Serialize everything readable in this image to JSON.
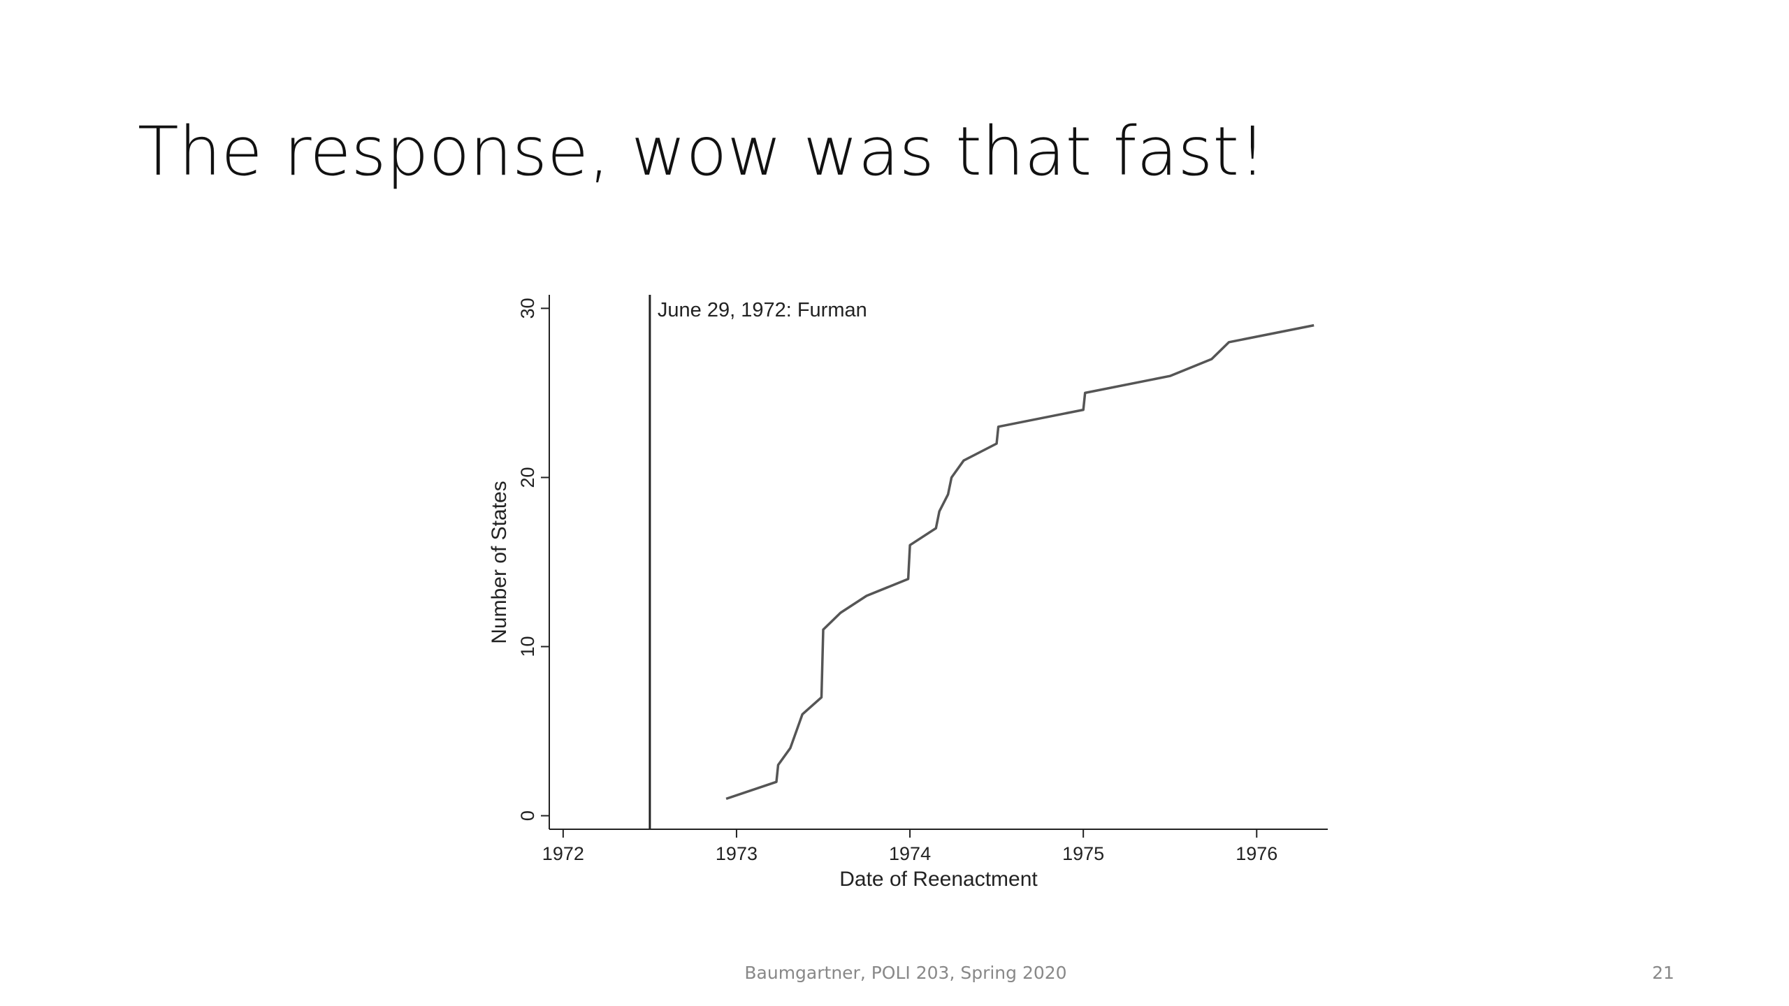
{
  "slide": {
    "title": "The response, wow was that fast!",
    "footer": "Baumgartner, POLI 203, Spring 2020",
    "page_number": "21"
  },
  "chart_data": {
    "type": "line",
    "x_label": "Date of Reenactment",
    "y_label": "Number of States",
    "x": [
      1972.94,
      1973.23,
      1973.24,
      1973.31,
      1973.38,
      1973.49,
      1973.5,
      1973.6,
      1973.75,
      1973.99,
      1974.0,
      1974.15,
      1974.17,
      1974.22,
      1974.24,
      1974.31,
      1974.5,
      1974.51,
      1975.0,
      1975.01,
      1975.5,
      1975.74,
      1975.84,
      1976.33
    ],
    "values": [
      1,
      2,
      3,
      4,
      6,
      7,
      11,
      12,
      13,
      14,
      16,
      17,
      18,
      19,
      20,
      21,
      22,
      23,
      24,
      25,
      26,
      27,
      28,
      29
    ],
    "color": "#555555",
    "xlim": [
      1971.92,
      1976.41
    ],
    "ylim": [
      -0.8,
      30.8
    ],
    "xticks": [
      1972,
      1973,
      1974,
      1975,
      1976
    ],
    "yticks": [
      0,
      10,
      20,
      30
    ],
    "grid": false,
    "vline": {
      "x": 1972.5,
      "label": "June 29, 1972: Furman",
      "color": "#222222"
    }
  }
}
